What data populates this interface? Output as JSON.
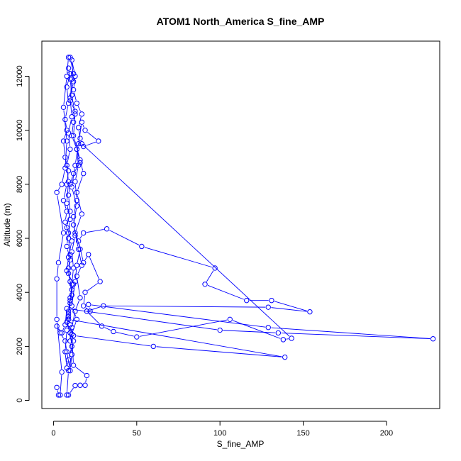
{
  "chart_data": {
    "type": "line",
    "title": "ATOM1 North_America S_fine_AMP",
    "xlabel": "S_fine_AMP",
    "ylabel": "Altitude (m)",
    "xlim": [
      -7,
      232
    ],
    "ylim": [
      -300,
      13300
    ],
    "x_ticks": [
      0,
      50,
      100,
      150,
      200
    ],
    "y_ticks": [
      0,
      2000,
      4000,
      6000,
      8000,
      10000,
      12000
    ],
    "grid": false,
    "legend": "none",
    "colors": {
      "series": "#0000ff"
    },
    "markers": "open-circle",
    "series": [
      {
        "points": [
          [
            2,
            480
          ],
          [
            3,
            200
          ],
          [
            4,
            200
          ],
          [
            5,
            1050
          ],
          [
            2,
            3000
          ],
          [
            2,
            4500
          ],
          [
            3,
            5100
          ],
          [
            6,
            6200
          ],
          [
            2,
            7700
          ],
          [
            5,
            8000
          ],
          [
            7,
            8600
          ],
          [
            8,
            9600
          ],
          [
            6,
            10850
          ],
          [
            8,
            12000
          ],
          [
            9,
            12700
          ],
          [
            10,
            12700
          ],
          [
            12,
            12100
          ],
          [
            11,
            11900
          ],
          [
            10,
            11100
          ],
          [
            13,
            10700
          ],
          [
            12,
            10300
          ],
          [
            11,
            9800
          ],
          [
            14,
            9300
          ],
          [
            16,
            8800
          ],
          [
            12,
            8400
          ],
          [
            10,
            8000
          ],
          [
            9,
            7600
          ],
          [
            10,
            7000
          ],
          [
            8,
            6400
          ],
          [
            11,
            5900
          ],
          [
            9,
            5300
          ],
          [
            8,
            4800
          ],
          [
            12,
            4300
          ],
          [
            10,
            3800
          ],
          [
            9,
            3300
          ],
          [
            10,
            2800
          ],
          [
            10,
            2200
          ],
          [
            11,
            1700
          ],
          [
            9,
            1100
          ],
          [
            8,
            200
          ],
          [
            9,
            200
          ],
          [
            13,
            550
          ],
          [
            16,
            560
          ],
          [
            19,
            560
          ],
          [
            20,
            920
          ],
          [
            12,
            1300
          ],
          [
            11,
            2450
          ],
          [
            14,
            3000
          ],
          [
            11,
            3500
          ],
          [
            13,
            4400
          ],
          [
            14,
            5000
          ],
          [
            16,
            5600
          ],
          [
            12,
            6500
          ],
          [
            14,
            7200
          ],
          [
            11,
            7900
          ],
          [
            13,
            8700
          ],
          [
            15,
            9500
          ],
          [
            17,
            10300
          ],
          [
            19,
            10000
          ],
          [
            27,
            9600
          ],
          [
            18,
            9400
          ],
          [
            17,
            9500
          ],
          [
            143,
            2300
          ],
          [
            138,
            2250
          ],
          [
            106,
            3000
          ],
          [
            50,
            2350
          ],
          [
            36,
            2550
          ],
          [
            29,
            2750
          ],
          [
            20,
            3300
          ],
          [
            30,
            3500
          ],
          [
            129,
            3450
          ],
          [
            154,
            3280
          ],
          [
            131,
            3700
          ],
          [
            116,
            3700
          ],
          [
            91,
            4300
          ],
          [
            97,
            4900
          ],
          [
            53,
            5700
          ],
          [
            32,
            6350
          ],
          [
            18,
            6200
          ],
          [
            15,
            5900
          ],
          [
            18,
            5100
          ],
          [
            21,
            5400
          ],
          [
            28,
            4400
          ],
          [
            19,
            4000
          ],
          [
            18,
            3500
          ],
          [
            22,
            3300
          ],
          [
            21,
            3550
          ],
          [
            129,
            2700
          ],
          [
            228,
            2280
          ],
          [
            135,
            2500
          ],
          [
            100,
            2600
          ],
          [
            8,
            3400
          ],
          [
            7,
            2800
          ],
          [
            5,
            2500
          ],
          [
            2,
            2750
          ],
          [
            4,
            2500
          ],
          [
            7,
            2200
          ],
          [
            8,
            1800
          ],
          [
            10,
            1100
          ],
          [
            11,
            1700
          ],
          [
            12,
            2200
          ],
          [
            10,
            2800
          ],
          [
            9,
            3000
          ],
          [
            139,
            1600
          ],
          [
            60,
            2000
          ],
          [
            12,
            2400
          ],
          [
            11,
            2700
          ],
          [
            13,
            3300
          ],
          [
            16,
            3800
          ],
          [
            14,
            4600
          ],
          [
            17,
            5000
          ],
          [
            15,
            5600
          ],
          [
            13,
            6200
          ],
          [
            17,
            6900
          ],
          [
            14,
            7700
          ],
          [
            18,
            8400
          ],
          [
            16,
            8900
          ],
          [
            12,
            9800
          ],
          [
            13,
            10600
          ],
          [
            11,
            11300
          ],
          [
            10,
            11900
          ],
          [
            9,
            12300
          ],
          [
            10,
            12100
          ],
          [
            8,
            11600
          ],
          [
            9,
            11000
          ],
          [
            7,
            10400
          ],
          [
            8,
            10000
          ],
          [
            6,
            9600
          ],
          [
            7,
            9000
          ],
          [
            9,
            8500
          ],
          [
            8,
            8000
          ],
          [
            6,
            7400
          ],
          [
            8,
            7000
          ],
          [
            7,
            6600
          ],
          [
            9,
            6200
          ],
          [
            8,
            5700
          ],
          [
            10,
            5200
          ],
          [
            9,
            4700
          ],
          [
            11,
            4100
          ],
          [
            10,
            3600
          ],
          [
            9,
            3200
          ],
          [
            8,
            2900
          ],
          [
            10,
            2500
          ],
          [
            11,
            2000
          ],
          [
            9,
            1500
          ],
          [
            8,
            1200
          ],
          [
            7,
            1800
          ],
          [
            8,
            2600
          ],
          [
            9,
            3100
          ],
          [
            10,
            3700
          ],
          [
            11,
            4300
          ],
          [
            12,
            4900
          ],
          [
            11,
            5500
          ],
          [
            13,
            6100
          ],
          [
            12,
            6800
          ],
          [
            14,
            7400
          ],
          [
            13,
            8100
          ],
          [
            15,
            8700
          ],
          [
            14,
            9300
          ],
          [
            16,
            9700
          ],
          [
            15,
            10100
          ],
          [
            17,
            10600
          ],
          [
            14,
            11000
          ],
          [
            12,
            11500
          ],
          [
            13,
            12000
          ],
          [
            11,
            12600
          ],
          [
            12,
            11800
          ],
          [
            10,
            11200
          ],
          [
            11,
            10500
          ],
          [
            9,
            9900
          ],
          [
            10,
            9300
          ],
          [
            8,
            8700
          ],
          [
            9,
            8100
          ],
          [
            8,
            7300
          ],
          [
            10,
            6700
          ],
          [
            9,
            6000
          ],
          [
            10,
            5400
          ],
          [
            9,
            4900
          ],
          [
            10,
            4400
          ],
          [
            11,
            3900
          ]
        ]
      }
    ]
  }
}
